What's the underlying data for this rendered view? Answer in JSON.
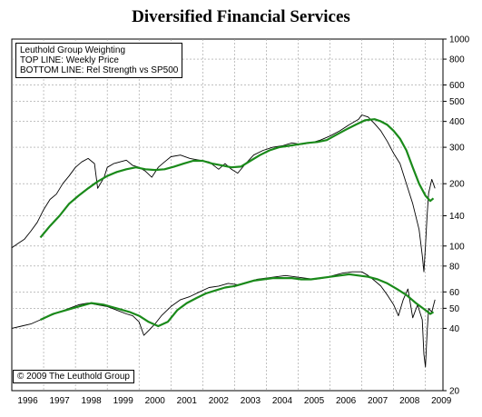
{
  "chart_data": {
    "type": "line",
    "title": "Diversified Financial Services",
    "legend": {
      "placement": "top-left",
      "lines": [
        "Leuthold Group Weighting",
        "TOP LINE: Weekly Price",
        "BOTTOM LINE: Rel Strength vs SP500"
      ]
    },
    "copyright": "© 2009 The Leuthold Group",
    "x_tick_labels": [
      "1996",
      "1997",
      "1998",
      "1999",
      "2000",
      "2001",
      "2002",
      "2003",
      "2004",
      "2005",
      "2006",
      "2007",
      "2008",
      "2009"
    ],
    "y_scale": "log",
    "ylim": [
      20,
      1000
    ],
    "y_ticks": [
      1000,
      800,
      600,
      500,
      400,
      300,
      200,
      140,
      100,
      80,
      60,
      50,
      40,
      20
    ],
    "grid": true,
    "colors": {
      "price": "#000000",
      "moving_average": "#1a8a1a",
      "grid": "#9a9a9a"
    },
    "series": [
      {
        "key": "price_weekly",
        "x": [
          1996.0,
          1996.2,
          1996.4,
          1996.6,
          1996.8,
          1997.0,
          1997.2,
          1997.4,
          1997.6,
          1997.8,
          1998.0,
          1998.2,
          1998.4,
          1998.6,
          1998.7,
          1998.9,
          1999.0,
          1999.2,
          1999.4,
          1999.6,
          1999.8,
          2000.0,
          2000.2,
          2000.4,
          2000.6,
          2000.8,
          2001.0,
          2001.3,
          2001.6,
          2001.9,
          2002.2,
          2002.5,
          2002.7,
          2002.9,
          2003.1,
          2003.3,
          2003.6,
          2003.9,
          2004.2,
          2004.5,
          2004.8,
          2005.1,
          2005.4,
          2005.7,
          2006.0,
          2006.3,
          2006.6,
          2006.9,
          2007.0,
          2007.2,
          2007.4,
          2007.6,
          2007.8,
          2008.0,
          2008.2,
          2008.4,
          2008.6,
          2008.8,
          2008.9,
          2008.95,
          2009.0,
          2009.05,
          2009.1,
          2009.2,
          2009.3
        ],
        "values": [
          98,
          103,
          108,
          118,
          130,
          150,
          168,
          178,
          200,
          218,
          240,
          255,
          265,
          250,
          190,
          215,
          240,
          250,
          255,
          260,
          245,
          240,
          230,
          215,
          240,
          255,
          270,
          275,
          265,
          260,
          255,
          235,
          250,
          235,
          225,
          245,
          275,
          290,
          300,
          305,
          315,
          310,
          315,
          325,
          340,
          360,
          385,
          410,
          430,
          420,
          390,
          360,
          320,
          280,
          250,
          200,
          160,
          120,
          90,
          75,
          100,
          140,
          180,
          210,
          190
        ]
      },
      {
        "key": "price_moving_average",
        "x": [
          1996.9,
          1997.2,
          1997.5,
          1997.8,
          1998.1,
          1998.4,
          1998.7,
          1999.0,
          1999.3,
          1999.6,
          1999.9,
          2000.2,
          2000.5,
          2000.8,
          2001.1,
          2001.4,
          2001.7,
          2002.0,
          2002.3,
          2002.6,
          2002.9,
          2003.2,
          2003.5,
          2003.8,
          2004.1,
          2004.4,
          2004.7,
          2005.0,
          2005.3,
          2005.6,
          2005.9,
          2006.2,
          2006.5,
          2006.8,
          2007.1,
          2007.4,
          2007.6,
          2007.8,
          2008.0,
          2008.2,
          2008.4,
          2008.6,
          2008.8,
          2009.0,
          2009.15,
          2009.25
        ],
        "values": [
          110,
          125,
          140,
          160,
          175,
          190,
          205,
          218,
          228,
          235,
          240,
          235,
          233,
          235,
          242,
          250,
          258,
          258,
          250,
          245,
          240,
          242,
          258,
          275,
          290,
          300,
          305,
          310,
          315,
          318,
          325,
          345,
          365,
          385,
          405,
          410,
          400,
          385,
          360,
          330,
          290,
          240,
          200,
          175,
          165,
          170
        ]
      },
      {
        "key": "relative_strength",
        "x": [
          1996.0,
          1996.3,
          1996.6,
          1996.9,
          1997.2,
          1997.5,
          1997.8,
          1998.1,
          1998.4,
          1998.7,
          1999.0,
          1999.3,
          1999.6,
          1999.8,
          2000.0,
          2000.15,
          2000.3,
          2000.5,
          2000.7,
          2001.0,
          2001.3,
          2001.6,
          2001.9,
          2002.2,
          2002.5,
          2002.8,
          2003.1,
          2003.4,
          2003.7,
          2004.0,
          2004.3,
          2004.6,
          2004.9,
          2005.2,
          2005.5,
          2005.8,
          2006.1,
          2006.4,
          2006.7,
          2007.0,
          2007.2,
          2007.4,
          2007.6,
          2007.8,
          2008.0,
          2008.15,
          2008.3,
          2008.45,
          2008.6,
          2008.75,
          2008.9,
          2008.95,
          2009.0,
          2009.05,
          2009.1,
          2009.2,
          2009.3
        ],
        "values": [
          40,
          41,
          42,
          44,
          46,
          48,
          50,
          52,
          53,
          52,
          51,
          49,
          47,
          46,
          43,
          37,
          39,
          42,
          46,
          51,
          55,
          57,
          60,
          63,
          64,
          66,
          65,
          67,
          69,
          70,
          71,
          72,
          71,
          70,
          69,
          70,
          72,
          74,
          75,
          75,
          72,
          68,
          64,
          58,
          52,
          46,
          55,
          62,
          45,
          52,
          44,
          30,
          26,
          38,
          50,
          48,
          55
        ]
      },
      {
        "key": "relative_strength_moving_average",
        "x": [
          1996.9,
          1997.3,
          1997.7,
          1998.1,
          1998.5,
          1998.9,
          1999.3,
          1999.7,
          2000.0,
          2000.3,
          2000.6,
          2000.9,
          2001.2,
          2001.5,
          2001.8,
          2002.1,
          2002.4,
          2002.7,
          2003.0,
          2003.3,
          2003.6,
          2003.9,
          2004.2,
          2004.5,
          2004.8,
          2005.1,
          2005.4,
          2005.7,
          2006.0,
          2006.3,
          2006.6,
          2006.9,
          2007.2,
          2007.5,
          2007.8,
          2008.1,
          2008.4,
          2008.7,
          2009.0,
          2009.15,
          2009.25
        ],
        "values": [
          44,
          47,
          49,
          51,
          53,
          52,
          50,
          48,
          46,
          43,
          41,
          43,
          49,
          53,
          56,
          59,
          61,
          63,
          64,
          66,
          68,
          69,
          70,
          70,
          70,
          69,
          69,
          70,
          71,
          72,
          73,
          72,
          71,
          69,
          66,
          62,
          58,
          53,
          49,
          47,
          48
        ]
      }
    ]
  }
}
